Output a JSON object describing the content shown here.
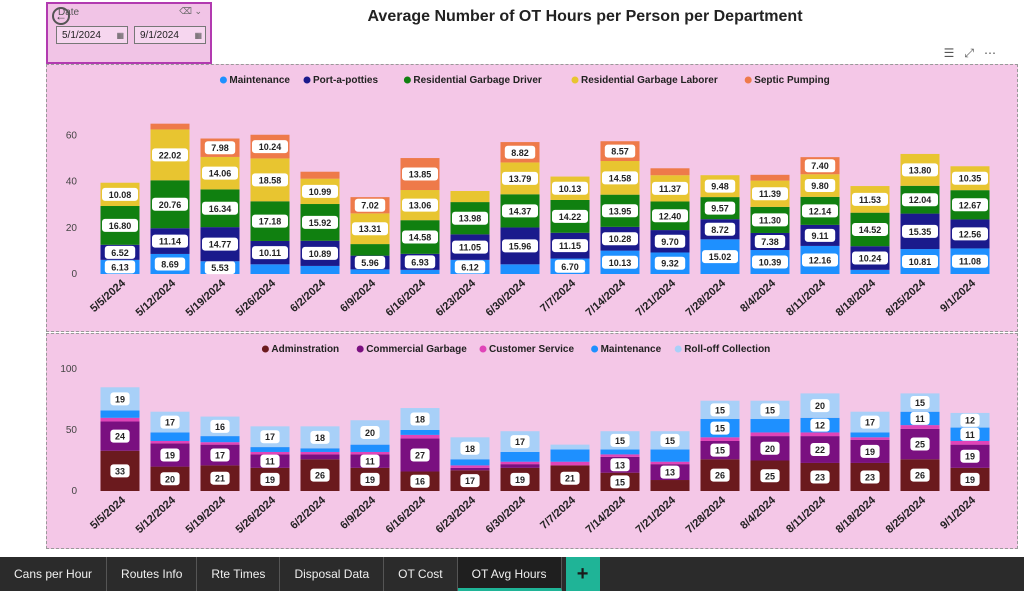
{
  "slicer": {
    "label": "Date",
    "start": "5/1/2024",
    "end": "9/1/2024"
  },
  "page_title": "Average Number of OT Hours per Person per Department",
  "tabs": [
    "Cans per Hour",
    "Routes Info",
    "Rte Times",
    "Disposal Data",
    "OT Cost",
    "OT Avg Hours"
  ],
  "active_tab": "OT Avg Hours",
  "add_tab_label": "+",
  "icons": [
    "back-arrow-icon",
    "calendar-icon",
    "eraser-icon",
    "chevron-down-icon",
    "filter-icon",
    "focus-mode-icon",
    "more-options-icon"
  ],
  "chart_data": [
    {
      "type": "bar",
      "stacked": true,
      "title": "",
      "categories": [
        "5/5/2024",
        "5/12/2024",
        "5/19/2024",
        "5/26/2024",
        "6/2/2024",
        "6/9/2024",
        "6/16/2024",
        "6/23/2024",
        "6/30/2024",
        "7/7/2024",
        "7/14/2024",
        "7/21/2024",
        "7/28/2024",
        "8/4/2024",
        "8/11/2024",
        "8/18/2024",
        "8/25/2024",
        "9/1/2024"
      ],
      "ylim": [
        0,
        68
      ],
      "yticks": [
        0,
        20,
        40,
        60
      ],
      "legend_position": "top-center",
      "grid": false,
      "series": [
        {
          "name": "Maintenance",
          "color": "#1e90ff",
          "values": [
            6.13,
            8.69,
            5.53,
            4.2,
            3.5,
            2.0,
            1.8,
            6.12,
            4.2,
            6.7,
            10.13,
            9.32,
            15.02,
            10.39,
            12.16,
            1.8,
            10.81,
            11.08
          ],
          "labels": [
            "6.13",
            "8.69",
            "5.53",
            "",
            "",
            "",
            "",
            "6.12",
            "",
            "6.70",
            "10.13",
            "9.32",
            "15.02",
            "10.39",
            "12.16",
            "",
            "10.81",
            "11.08"
          ]
        },
        {
          "name": "Port-a-potties",
          "color": "#1a1a8c",
          "values": [
            6.52,
            11.14,
            14.77,
            10.11,
            10.89,
            5.96,
            6.93,
            11.05,
            15.96,
            11.15,
            10.28,
            9.7,
            8.72,
            7.38,
            9.11,
            10.24,
            15.35,
            12.56
          ],
          "labels": [
            "6.52",
            "11.14",
            "14.77",
            "10.11",
            "10.89",
            "5.96",
            "6.93",
            "11.05",
            "15.96",
            "11.15",
            "10.28",
            "9.70",
            "8.72",
            "7.38",
            "9.11",
            "10.24",
            "15.35",
            "12.56"
          ]
        },
        {
          "name": "Residential Garbage Driver",
          "color": "#108010",
          "values": [
            16.8,
            20.76,
            16.34,
            17.18,
            15.92,
            5.0,
            14.58,
            13.98,
            14.37,
            14.22,
            13.95,
            12.4,
            9.57,
            11.3,
            12.14,
            14.52,
            12.04,
            12.67
          ],
          "labels": [
            "16.80",
            "20.76",
            "16.34",
            "17.18",
            "15.92",
            "",
            "14.58",
            "13.98",
            "14.37",
            "14.22",
            "13.95",
            "12.40",
            "9.57",
            "11.30",
            "12.14",
            "14.52",
            "12.04",
            "12.67"
          ]
        },
        {
          "name": "Residential Garbage Laborer",
          "color": "#e8c530",
          "values": [
            10.08,
            22.02,
            14.06,
            18.58,
            10.99,
            13.31,
            13.06,
            4.8,
            13.79,
            10.13,
            14.58,
            11.37,
            9.48,
            11.39,
            9.8,
            11.53,
            13.8,
            10.35
          ],
          "labels": [
            "10.08",
            "22.02",
            "14.06",
            "18.58",
            "10.99",
            "13.31",
            "13.06",
            "",
            "13.79",
            "10.13",
            "14.58",
            "11.37",
            "9.48",
            "11.39",
            "9.80",
            "11.53",
            "13.80",
            "10.35"
          ]
        },
        {
          "name": "Septic Pumping",
          "color": "#ee7a4a",
          "values": [
            0,
            2.5,
            7.98,
            10.24,
            3.0,
            7.02,
            13.85,
            0,
            8.82,
            0,
            8.57,
            3.0,
            0,
            2.5,
            7.4,
            0,
            0,
            0
          ],
          "labels": [
            "",
            "",
            "7.98",
            "10.24",
            "",
            "7.02",
            "13.85",
            "",
            "8.82",
            "",
            "8.57",
            "",
            "",
            "",
            "7.40",
            "",
            "",
            ""
          ]
        }
      ]
    },
    {
      "type": "bar",
      "stacked": true,
      "title": "",
      "categories": [
        "5/5/2024",
        "5/12/2024",
        "5/19/2024",
        "5/26/2024",
        "6/2/2024",
        "6/9/2024",
        "6/16/2024",
        "6/23/2024",
        "6/30/2024",
        "7/7/2024",
        "7/14/2024",
        "7/21/2024",
        "7/28/2024",
        "8/4/2024",
        "8/11/2024",
        "8/18/2024",
        "8/25/2024",
        "9/1/2024"
      ],
      "ylim": [
        0,
        100
      ],
      "yticks": [
        0,
        50,
        100
      ],
      "legend_position": "top-center",
      "grid": false,
      "series": [
        {
          "name": "Adminstration",
          "color": "#6b1a1e",
          "values": [
            33,
            20,
            21,
            19,
            26,
            19,
            16,
            17,
            19,
            21,
            15,
            9,
            26,
            25,
            23,
            23,
            26,
            19
          ],
          "labels": [
            "33",
            "20",
            "21",
            "19",
            "26",
            "19",
            "16",
            "17",
            "19",
            "21",
            "15",
            "",
            "26",
            "25",
            "23",
            "23",
            "26",
            "19"
          ]
        },
        {
          "name": "Commercial Garbage",
          "color": "#7a1080",
          "values": [
            24,
            19,
            17,
            11,
            4,
            11,
            27,
            2,
            3,
            0,
            13,
            13,
            15,
            20,
            22,
            19,
            25,
            19
          ],
          "labels": [
            "24",
            "19",
            "17",
            "11",
            "",
            "11",
            "27",
            "",
            "",
            "",
            "13",
            "13",
            "15",
            "20",
            "22",
            "19",
            "25",
            "19"
          ]
        },
        {
          "name": "Customer Service",
          "color": "#e044b8",
          "values": [
            3,
            2,
            2,
            2,
            2,
            2,
            3,
            2,
            2,
            3,
            2,
            2,
            3,
            3,
            3,
            2,
            3,
            3
          ],
          "labels": [
            "",
            "",
            "",
            "",
            "",
            "",
            "",
            "",
            "",
            "",
            "",
            "",
            "",
            "",
            "",
            "",
            "",
            ""
          ]
        },
        {
          "name": "Maintenance",
          "color": "#1e90ff",
          "values": [
            6,
            7,
            5,
            4,
            3,
            6,
            4,
            5,
            8,
            10,
            4,
            10,
            15,
            11,
            12,
            4,
            11,
            11
          ],
          "labels": [
            "",
            "",
            "",
            "",
            "",
            "",
            "",
            "",
            "",
            "",
            "",
            "",
            "15",
            "",
            "12",
            "",
            "11",
            "11"
          ]
        },
        {
          "name": "Roll-off Collection",
          "color": "#a8d0f8",
          "values": [
            19,
            17,
            16,
            17,
            18,
            20,
            18,
            18,
            17,
            4,
            15,
            15,
            15,
            15,
            20,
            17,
            15,
            12
          ],
          "labels": [
            "19",
            "17",
            "16",
            "17",
            "18",
            "20",
            "18",
            "18",
            "17",
            "",
            "15",
            "15",
            "15",
            "15",
            "20",
            "17",
            "15",
            "12"
          ]
        }
      ]
    }
  ]
}
